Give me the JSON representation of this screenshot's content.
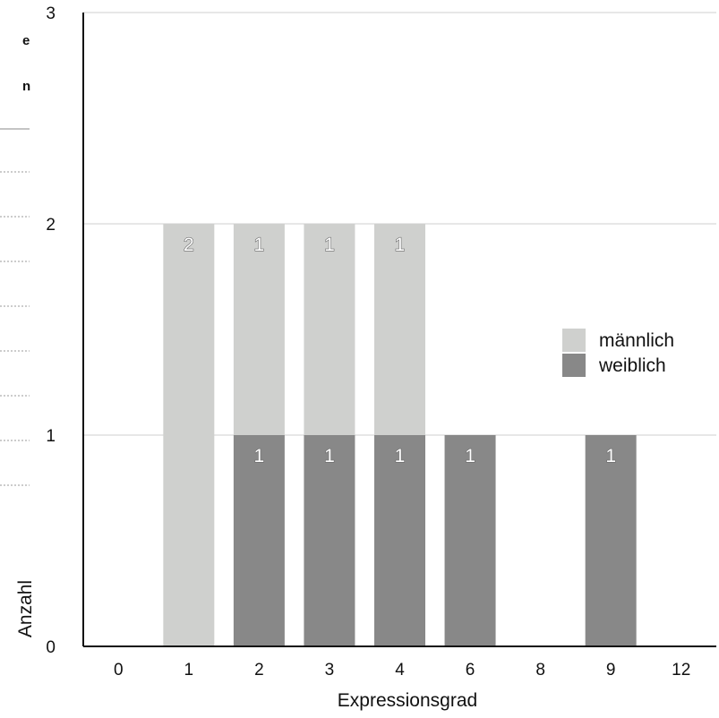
{
  "chart_data": {
    "type": "bar",
    "stacked": true,
    "categories": [
      "0",
      "1",
      "2",
      "3",
      "4",
      "6",
      "8",
      "9",
      "12"
    ],
    "series": [
      {
        "name": "weiblich",
        "values": [
          0,
          0,
          1,
          1,
          1,
          1,
          0,
          1,
          0
        ],
        "color": "#888888"
      },
      {
        "name": "männlich",
        "values": [
          0,
          2,
          1,
          1,
          1,
          0,
          0,
          0,
          0
        ],
        "color": "#cfd0ce"
      }
    ],
    "xlabel": "Expressionsgrad",
    "ylabel": "Anzahl",
    "ylim": [
      0,
      3
    ],
    "yticks": [
      "0",
      "1",
      "2",
      "3"
    ],
    "grid": true,
    "legend": "right"
  },
  "side_panel": {
    "fragment_1": "e",
    "fragment_2": "n"
  }
}
